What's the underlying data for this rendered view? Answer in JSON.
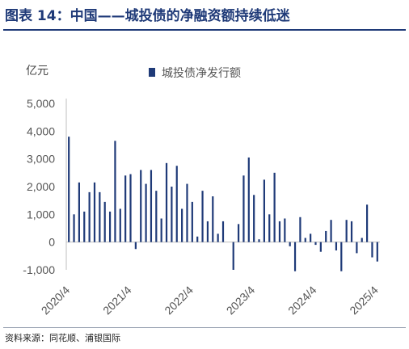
{
  "figure": {
    "title": "图表 14：中国——城投债的净融资额持续低迷",
    "source": "资料来源：同花顺、浦银国际"
  },
  "chart_data": {
    "type": "bar",
    "unit_label": "亿元",
    "series": [
      {
        "name": "城投债净发行额",
        "color": "#1f3a78",
        "values": [
          3800,
          1000,
          2150,
          1100,
          1800,
          2150,
          1800,
          1450,
          1100,
          3650,
          1200,
          2400,
          2450,
          -250,
          2600,
          2100,
          2600,
          1850,
          850,
          2850,
          2000,
          2750,
          1200,
          2100,
          1450,
          200,
          1850,
          750,
          1650,
          300,
          750,
          0,
          -1000,
          650,
          2400,
          3050,
          1700,
          100,
          2250,
          1000,
          2500,
          750,
          850,
          -150,
          -1050,
          900,
          150,
          300,
          -100,
          -350,
          400,
          800,
          -300,
          -1050,
          800,
          750,
          -400,
          150,
          1350,
          -550,
          -700
        ],
        "x_start": "2020-04",
        "frequency": "monthly"
      }
    ],
    "x_tick_labels": [
      "2020/4",
      "2021/4",
      "2022/4",
      "2023/4",
      "2024/4",
      "2025/4"
    ],
    "y_ticks": [
      "5,000",
      "4,000",
      "3,000",
      "2,000",
      "1,000",
      "0",
      "-1,000"
    ],
    "ylim": [
      -1000,
      5000
    ],
    "grid": false,
    "legend": "top"
  }
}
